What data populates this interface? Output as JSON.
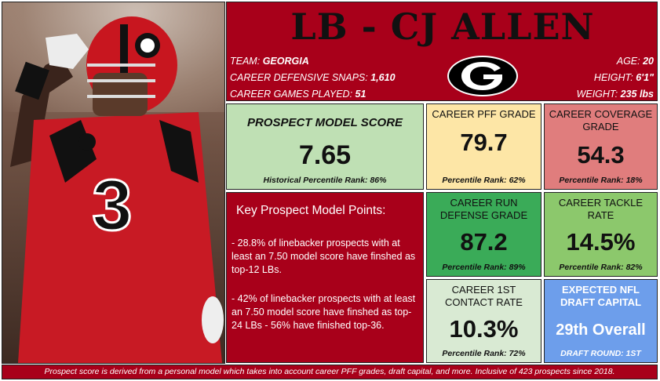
{
  "header": {
    "title": "LB - CJ ALLEN",
    "team_label": "TEAM:",
    "team": "GEORGIA",
    "snaps_label": "CAREER DEFENSIVE SNAPS:",
    "snaps": "1,610",
    "games_label": "CAREER GAMES PLAYED:",
    "games": "51",
    "age_label": "AGE:",
    "age": "20",
    "height_label": "HEIGHT:",
    "height": "6'1\"",
    "weight_label": "WEIGHT:",
    "weight": "235 lbs",
    "logo_icon": "georgia-g-logo-icon"
  },
  "photo": {
    "jersey_number": "3",
    "helmet_icon": "helmet-icon"
  },
  "model": {
    "label": "PROSPECT MODEL SCORE",
    "value": "7.65",
    "rank": "Historical Percentile Rank: 86%"
  },
  "pff": {
    "label": "CAREER PFF GRADE",
    "value": "79.7",
    "rank": "Percentile Rank: 62%"
  },
  "coverage": {
    "label": "CAREER COVERAGE GRADE",
    "value": "54.3",
    "rank": "Percentile Rank: 18%"
  },
  "run": {
    "label": "CAREER RUN DEFENSE GRADE",
    "value": "87.2",
    "rank": "Percentile Rank: 89%"
  },
  "tackle": {
    "label": "CAREER TACKLE RATE",
    "value": "14.5%",
    "rank": "Percentile Rank: 82%"
  },
  "contact": {
    "label": "CAREER 1ST CONTACT RATE",
    "value": "10.3%",
    "rank": "Percentile Rank: 72%"
  },
  "draft": {
    "label": "EXPECTED NFL DRAFT CAPITAL",
    "value": "29th Overall",
    "rank": "DRAFT ROUND: 1ST"
  },
  "points": {
    "heading": "Key Prospect Model Points:",
    "items": [
      "- 28.8% of linebacker prospects with at least an 7.50 model score have finshed as top-12 LBs.",
      "- 42% of linebacker prospects with at least an 7.50 model score have finshed as top-24 LBs - 56% have finished top-36."
    ]
  },
  "footer": "Prospect score is derived from a personal model which takes into account career PFF grades, draft capital, and more. Inclusive of 423 prospects since 2018.",
  "colors": {
    "accent": "#a8001a",
    "model": "#bfe0b4",
    "pff": "#fde6a6",
    "coverage": "#e07d7d",
    "run": "#3aab58",
    "tackle": "#8cc86c",
    "contact": "#d9ead3",
    "draft": "#6d9eeb"
  }
}
